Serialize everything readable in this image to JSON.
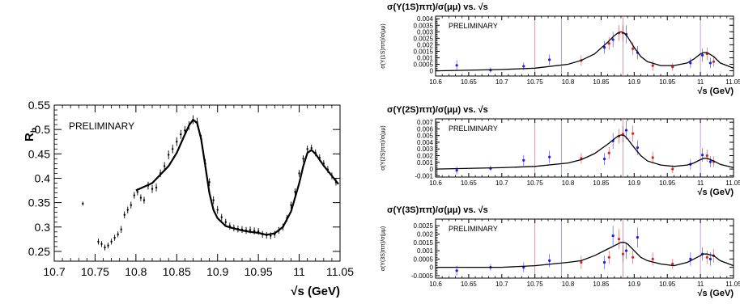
{
  "chart_data": [
    {
      "type": "scatter",
      "panel": "left",
      "title": "",
      "annotation": "PRELIMINARY",
      "xlabel": "√s (GeV)",
      "ylabel": "Rb",
      "ylabel_main": "R",
      "ylabel_sub": "b",
      "xlim": [
        10.7,
        11.05
      ],
      "ylim": [
        0.23,
        0.55
      ],
      "xticks": [
        10.7,
        10.75,
        10.8,
        10.85,
        10.9,
        10.95,
        11,
        11.05
      ],
      "xtick_labels": [
        "10.7",
        "10.75",
        "10.8",
        "10.85",
        "10.9",
        "10.95",
        "11",
        "11.05"
      ],
      "yticks": [
        0.25,
        0.3,
        0.35,
        0.4,
        0.45,
        0.5,
        0.55
      ],
      "ytick_labels": [
        "0.25",
        "0.3",
        "0.35",
        "0.4",
        "0.45",
        "0.5",
        "0.55"
      ],
      "series": [
        {
          "kind": "points",
          "x": [
            10.735,
            10.754,
            10.758,
            10.762,
            10.766,
            10.77,
            10.774,
            10.778,
            10.782,
            10.786,
            10.79,
            10.794,
            10.798,
            10.802,
            10.806,
            10.81,
            10.815,
            10.82,
            10.825,
            10.83,
            10.835,
            10.84,
            10.845,
            10.85,
            10.855,
            10.86,
            10.865,
            10.87,
            10.875,
            10.88,
            10.885,
            10.89,
            10.895,
            10.9,
            10.905,
            10.91,
            10.915,
            10.92,
            10.925,
            10.93,
            10.935,
            10.94,
            10.945,
            10.95,
            10.955,
            10.96,
            10.965,
            10.97,
            10.975,
            10.98,
            10.985,
            10.99,
            10.995,
            11.0,
            11.005,
            11.01,
            11.015,
            11.02,
            11.025,
            11.03,
            11.035,
            11.04,
            11.045
          ],
          "y": [
            0.348,
            0.27,
            0.265,
            0.258,
            0.262,
            0.27,
            0.278,
            0.285,
            0.295,
            0.325,
            0.335,
            0.345,
            0.365,
            0.372,
            0.36,
            0.355,
            0.385,
            0.378,
            0.381,
            0.41,
            0.425,
            0.448,
            0.46,
            0.475,
            0.49,
            0.498,
            0.508,
            0.52,
            0.515,
            0.48,
            0.43,
            0.392,
            0.355,
            0.335,
            0.32,
            0.31,
            0.302,
            0.298,
            0.296,
            0.295,
            0.293,
            0.294,
            0.292,
            0.291,
            0.285,
            0.283,
            0.282,
            0.285,
            0.293,
            0.3,
            0.318,
            0.345,
            0.372,
            0.41,
            0.44,
            0.46,
            0.462,
            0.452,
            0.442,
            0.43,
            0.418,
            0.405,
            0.392
          ],
          "err": [
            0.004,
            0.006,
            0.006,
            0.006,
            0.006,
            0.006,
            0.006,
            0.006,
            0.007,
            0.007,
            0.007,
            0.007,
            0.007,
            0.007,
            0.007,
            0.007,
            0.008,
            0.008,
            0.008,
            0.008,
            0.008,
            0.009,
            0.009,
            0.009,
            0.009,
            0.009,
            0.009,
            0.009,
            0.009,
            0.009,
            0.009,
            0.008,
            0.008,
            0.008,
            0.007,
            0.007,
            0.007,
            0.007,
            0.007,
            0.007,
            0.007,
            0.007,
            0.007,
            0.007,
            0.007,
            0.007,
            0.007,
            0.007,
            0.007,
            0.007,
            0.007,
            0.007,
            0.007,
            0.007,
            0.007,
            0.007,
            0.007,
            0.007,
            0.007,
            0.007,
            0.007,
            0.007,
            0.007
          ]
        },
        {
          "kind": "fit",
          "x": [
            10.8,
            10.82,
            10.84,
            10.85,
            10.86,
            10.865,
            10.87,
            10.875,
            10.88,
            10.885,
            10.89,
            10.895,
            10.9,
            10.91,
            10.92,
            10.93,
            10.94,
            10.95,
            10.96,
            10.97,
            10.98,
            10.99,
            11.0,
            11.005,
            11.01,
            11.015,
            11.02,
            11.03,
            11.04,
            11.048
          ],
          "y": [
            0.375,
            0.39,
            0.425,
            0.452,
            0.49,
            0.508,
            0.52,
            0.513,
            0.48,
            0.425,
            0.37,
            0.335,
            0.318,
            0.302,
            0.297,
            0.293,
            0.29,
            0.288,
            0.284,
            0.287,
            0.3,
            0.332,
            0.39,
            0.425,
            0.452,
            0.458,
            0.45,
            0.426,
            0.405,
            0.388
          ]
        }
      ]
    },
    {
      "type": "scatter",
      "panel": "right-top",
      "title": "σ(Υ(1S)ππ)/σ(μμ) vs. √s",
      "annotation": "PRELIMINARY",
      "xlabel": "√s (GeV)",
      "ylabel": "σ(Υ(1S)ππ)/σ(μμ)",
      "xlim": [
        10.6,
        11.05
      ],
      "ylim": [
        -0.0004,
        0.0042
      ],
      "xticks": [
        10.6,
        10.65,
        10.7,
        10.75,
        10.8,
        10.85,
        10.9,
        10.95,
        11,
        11.05
      ],
      "xtick_labels": [
        "10.6",
        "10.65",
        "10.7",
        "10.75",
        "10.8",
        "10.85",
        "10.9",
        "10.95",
        "11",
        "11.05"
      ],
      "yticks": [
        0,
        0.0005,
        0.001,
        0.0015,
        0.002,
        0.0025,
        0.003,
        0.0035,
        0.004
      ],
      "ytick_labels": [
        "0",
        "0.0005",
        "0.001",
        "0.0015",
        "0.002",
        "0.0025",
        "0.003",
        "0.0035",
        "0.004"
      ],
      "vlines": [
        {
          "x": 10.75,
          "color": "#d87b9a"
        },
        {
          "x": 10.79,
          "color": "#7a8fd6"
        },
        {
          "x": 10.883,
          "color": "#d87b9a"
        },
        {
          "x": 11.0,
          "color": "#b88ad0"
        }
      ],
      "series": [
        {
          "kind": "points",
          "color": "#1a1aff",
          "x": [
            10.632,
            10.683,
            10.733,
            10.772,
            10.855,
            10.868,
            10.888,
            10.905,
            10.985,
            11.003,
            11.015
          ],
          "y": [
            0.00042,
            5e-05,
            0.00035,
            0.00085,
            0.0018,
            0.0024,
            0.0028,
            0.0014,
            0.0006,
            0.0012,
            0.0006
          ],
          "err": [
            0.0004,
            0.0002,
            0.0003,
            0.0004,
            0.0005,
            0.0006,
            0.0007,
            0.0005,
            0.0004,
            0.0005,
            0.0004
          ]
        },
        {
          "kind": "points",
          "color": "#e02020",
          "x": [
            10.82,
            10.862,
            10.877,
            10.883,
            10.898,
            10.928,
            10.958,
            11.01,
            11.02
          ],
          "y": [
            0.0008,
            0.0021,
            0.0029,
            0.0029,
            0.0017,
            0.0004,
            0.0003,
            0.0013,
            0.0007
          ],
          "err": [
            0.0004,
            0.0005,
            0.0006,
            0.0006,
            0.0005,
            0.0004,
            0.0003,
            0.0005,
            0.0004
          ]
        },
        {
          "kind": "fit",
          "x": [
            10.6,
            10.7,
            10.75,
            10.8,
            10.82,
            10.84,
            10.86,
            10.87,
            10.875,
            10.88,
            10.885,
            10.89,
            10.9,
            10.91,
            10.92,
            10.94,
            10.96,
            10.98,
            10.99,
            11.0,
            11.005,
            11.01,
            11.02,
            11.03,
            11.05
          ],
          "y": [
            0.0,
            0.0001,
            0.0002,
            0.0005,
            0.0008,
            0.0013,
            0.0022,
            0.0027,
            0.0029,
            0.003,
            0.0029,
            0.0026,
            0.0018,
            0.0011,
            0.0007,
            0.0004,
            0.0004,
            0.0006,
            0.0009,
            0.0013,
            0.0014,
            0.0014,
            0.0011,
            0.0006,
            0.0002
          ]
        }
      ]
    },
    {
      "type": "scatter",
      "panel": "right-middle",
      "title": "σ(Υ(2S)ππ)/σ(μμ) vs. √s",
      "annotation": "PRELIMINARY",
      "xlabel": "√s (GeV)",
      "ylabel": "σ(Υ(2S)ππ)/σ(μμ)",
      "xlim": [
        10.6,
        11.05
      ],
      "ylim": [
        -0.0012,
        0.0075
      ],
      "xticks": [
        10.6,
        10.65,
        10.7,
        10.75,
        10.8,
        10.85,
        10.9,
        10.95,
        11,
        11.05
      ],
      "xtick_labels": [
        "10.6",
        "10.65",
        "10.7",
        "10.75",
        "10.8",
        "10.85",
        "10.9",
        "10.95",
        "11",
        "11.05"
      ],
      "yticks": [
        -0.001,
        0,
        0.001,
        0.002,
        0.003,
        0.004,
        0.005,
        0.006,
        0.007
      ],
      "ytick_labels": [
        "-0.001",
        "0",
        "0.001",
        "0.002",
        "0.003",
        "0.004",
        "0.005",
        "0.006",
        "0.007"
      ],
      "vlines": [
        {
          "x": 10.75,
          "color": "#d87b9a"
        },
        {
          "x": 10.79,
          "color": "#7a8fd6"
        },
        {
          "x": 10.883,
          "color": "#d87b9a"
        },
        {
          "x": 11.0,
          "color": "#b88ad0"
        }
      ],
      "series": [
        {
          "kind": "points",
          "color": "#1a1aff",
          "x": [
            10.632,
            10.683,
            10.733,
            10.772,
            10.855,
            10.868,
            10.888,
            10.905,
            10.985,
            11.003,
            11.015
          ],
          "y": [
            -0.0002,
            0.0001,
            0.0013,
            0.0018,
            0.0015,
            0.0042,
            0.0058,
            0.0032,
            0.0007,
            0.0021,
            0.0011
          ],
          "err": [
            0.0006,
            0.0004,
            0.0008,
            0.0009,
            0.0009,
            0.0012,
            0.0014,
            0.0011,
            0.0008,
            0.001,
            0.0008
          ]
        },
        {
          "kind": "points",
          "color": "#e02020",
          "x": [
            10.82,
            10.862,
            10.877,
            10.883,
            10.898,
            10.928,
            10.958,
            11.01,
            11.02
          ],
          "y": [
            0.0016,
            0.0024,
            0.0049,
            0.0052,
            0.0053,
            0.0017,
            0.0,
            0.002,
            0.0011
          ],
          "err": [
            0.0008,
            0.0009,
            0.0011,
            0.0012,
            0.0012,
            0.0009,
            0.0006,
            0.0009,
            0.0008
          ]
        },
        {
          "kind": "fit",
          "x": [
            10.6,
            10.7,
            10.75,
            10.8,
            10.82,
            10.84,
            10.86,
            10.87,
            10.875,
            10.88,
            10.885,
            10.89,
            10.9,
            10.91,
            10.92,
            10.94,
            10.96,
            10.98,
            10.99,
            11.0,
            11.005,
            11.01,
            11.02,
            11.03,
            11.05
          ],
          "y": [
            0.0,
            0.0002,
            0.0004,
            0.0009,
            0.0014,
            0.0023,
            0.0037,
            0.0045,
            0.0049,
            0.0051,
            0.005,
            0.0045,
            0.0032,
            0.002,
            0.0012,
            0.0006,
            0.0004,
            0.0006,
            0.0009,
            0.0014,
            0.0016,
            0.0016,
            0.0012,
            0.0007,
            0.0002
          ]
        }
      ]
    },
    {
      "type": "scatter",
      "panel": "right-bottom",
      "title": "σ(Υ(3S)ππ)/σ(μμ) vs. √s",
      "annotation": "PRELIMINARY",
      "xlabel": "√s (GeV)",
      "ylabel": "σ(Υ(3S)ππ)/σ(μμ)",
      "xlim": [
        10.6,
        11.05
      ],
      "ylim": [
        -0.00065,
        0.0029
      ],
      "xticks": [
        10.6,
        10.65,
        10.7,
        10.75,
        10.8,
        10.85,
        10.9,
        10.95,
        11,
        11.05
      ],
      "xtick_labels": [
        "10.6",
        "10.65",
        "10.7",
        "10.75",
        "10.8",
        "10.85",
        "10.9",
        "10.95",
        "11",
        "11.05"
      ],
      "yticks": [
        -0.0005,
        0,
        0.0005,
        0.001,
        0.0015,
        0.002,
        0.0025
      ],
      "ytick_labels": [
        "-0.0005",
        "0",
        "0.0005",
        "0.001",
        "0.0015",
        "0.002",
        "0.0025"
      ],
      "vlines": [
        {
          "x": 10.75,
          "color": "#d87b9a"
        },
        {
          "x": 10.79,
          "color": "#7a8fd6"
        },
        {
          "x": 10.883,
          "color": "#d87b9a"
        },
        {
          "x": 11.0,
          "color": "#b88ad0"
        }
      ],
      "series": [
        {
          "kind": "points",
          "color": "#1a1aff",
          "x": [
            10.632,
            10.683,
            10.733,
            10.772,
            10.855,
            10.868,
            10.888,
            10.905,
            10.985,
            11.003,
            11.015
          ],
          "y": [
            -0.0002,
            0.0,
            0.0,
            0.0004,
            0.0003,
            0.0019,
            0.001,
            0.0018,
            0.0005,
            0.0008,
            0.0005
          ],
          "err": [
            0.0003,
            0.0002,
            0.0003,
            0.0004,
            0.0004,
            0.0006,
            0.0005,
            0.0006,
            0.0004,
            0.0004,
            0.0004
          ]
        },
        {
          "kind": "points",
          "color": "#e02020",
          "x": [
            10.82,
            10.862,
            10.877,
            10.883,
            10.898,
            10.928,
            10.958,
            11.01,
            11.02
          ],
          "y": [
            0.0003,
            0.0006,
            0.0017,
            0.0008,
            0.0006,
            0.0005,
            0.0002,
            0.0006,
            0.0007
          ],
          "err": [
            0.0004,
            0.0004,
            0.0006,
            0.0005,
            0.0004,
            0.0004,
            0.0003,
            0.0004,
            0.0004
          ]
        },
        {
          "kind": "fit",
          "x": [
            10.6,
            10.7,
            10.75,
            10.8,
            10.82,
            10.84,
            10.86,
            10.87,
            10.875,
            10.88,
            10.885,
            10.89,
            10.9,
            10.91,
            10.92,
            10.94,
            10.96,
            10.98,
            10.99,
            11.0,
            11.005,
            11.01,
            11.02,
            11.03,
            11.05
          ],
          "y": [
            0.0,
            0.0,
            0.0001,
            0.0003,
            0.0004,
            0.0007,
            0.0011,
            0.0013,
            0.0014,
            0.0015,
            0.0015,
            0.0014,
            0.001,
            0.0006,
            0.0004,
            0.0002,
            0.0001,
            0.0003,
            0.0005,
            0.0007,
            0.0008,
            0.0008,
            0.0007,
            0.0004,
            0.0001
          ]
        }
      ]
    }
  ]
}
